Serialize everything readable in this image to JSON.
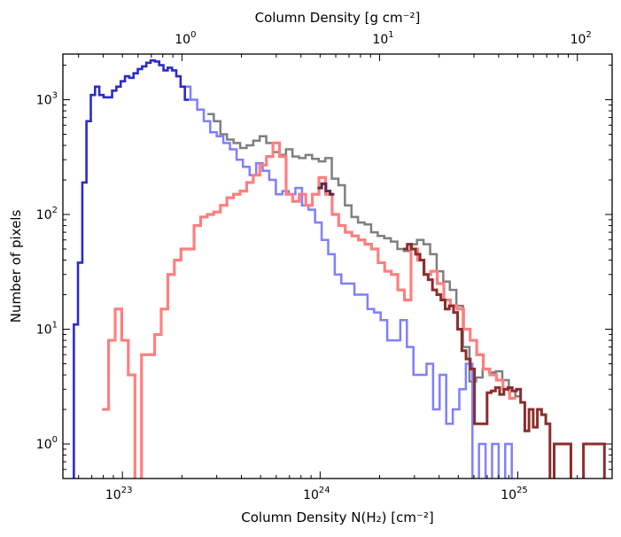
{
  "chart_data": {
    "type": "line",
    "xlabel": "Column Density N(H₂) [cm⁻²]",
    "ylabel": "Number of pixels",
    "top_xlabel": "Column Density [g cm⁻²]",
    "x_scale": "log",
    "y_scale": "log",
    "xlim": [
      5e+22,
      3e+25
    ],
    "ylim": [
      0.5,
      2500
    ],
    "x_ticks": [
      {
        "value": 1e+23,
        "base": "10",
        "exp": "23"
      },
      {
        "value": 1e+24,
        "base": "10",
        "exp": "24"
      },
      {
        "value": 1e+25,
        "base": "10",
        "exp": "25"
      }
    ],
    "y_ticks": [
      {
        "value": 1,
        "base": "10",
        "exp": "0"
      },
      {
        "value": 10,
        "base": "10",
        "exp": "1"
      },
      {
        "value": 100,
        "base": "10",
        "exp": "2"
      },
      {
        "value": 1000,
        "base": "10",
        "exp": "3"
      }
    ],
    "top_ticks": [
      {
        "value": 1,
        "base": "10",
        "exp": "0"
      },
      {
        "value": 10,
        "base": "10",
        "exp": "1"
      },
      {
        "value": 100,
        "base": "10",
        "exp": "2"
      }
    ],
    "top_to_bottom_factor": 2e+23,
    "grid": false,
    "series": [
      {
        "color": "#7f7f7f",
        "opacity": 1.0,
        "width": 2.5,
        "edges": [
          2.69e+23,
          2.9e+23,
          3.13e+23,
          3.38e+23,
          3.65e+23,
          3.94e+23,
          4.25e+23,
          4.59e+23,
          4.95e+23,
          5.34e+23,
          5.77e+23,
          6.22e+23,
          6.72e+23,
          7.25e+23,
          7.82e+23,
          8.44e+23,
          9.11e+23,
          9.84e+23,
          1.062e+24,
          1.146e+24,
          1.237e+24,
          1.335e+24,
          1.441e+24,
          1.555e+24,
          1.679e+24,
          1.812e+24,
          1.956e+24,
          2.11e+24,
          2.278e+24,
          2.459e+24,
          2.654e+24,
          2.865e+24,
          3.092e+24,
          3.337e+24,
          3.602e+24,
          3.888e+24,
          4.196e+24,
          4.53e+24,
          4.889e+24,
          5.277e+24,
          5.696e+24,
          6.148e+24,
          6.636e+24,
          7.163e+24,
          7.731e+24,
          8.345e+24,
          9.007e+24,
          9.722e+24,
          1.049e+25
        ],
        "values": [
          750,
          650,
          500,
          450,
          420,
          380,
          400,
          440,
          480,
          420,
          350,
          330,
          370,
          320,
          310,
          330,
          305,
          290,
          310,
          205,
          180,
          120,
          95,
          85,
          82,
          70,
          65,
          62,
          58,
          50,
          48,
          55,
          60,
          55,
          45,
          32,
          26,
          22,
          16,
          7,
          3.5,
          3.8,
          4.5,
          4.2,
          4.3,
          3.6,
          2.9,
          2.6
        ]
      },
      {
        "color": "#7f7fff",
        "opacity": 1.0,
        "width": 2.5,
        "edges": [
          2.05e+23,
          2.21e+23,
          2.39e+23,
          2.58e+23,
          2.78e+23,
          3e+23,
          3.24e+23,
          3.5e+23,
          3.78e+23,
          4.07e+23,
          4.4e+23,
          4.75e+23,
          5.12e+23,
          5.53e+23,
          5.97e+23,
          6.44e+23,
          6.95e+23,
          7.5e+23,
          8.1e+23,
          8.74e+23,
          9.43e+23,
          1.018e+24,
          1.099e+24,
          1.186e+24,
          1.28e+24,
          1.382e+24,
          1.491e+24,
          1.61e+24,
          1.737e+24,
          1.875e+24,
          2.024e+24,
          2.185e+24,
          2.358e+24,
          2.545e+24,
          2.747e+24,
          2.965e+24,
          3.2e+24,
          3.454e+24,
          3.728e+24,
          4.024e+24,
          4.343e+24,
          4.688e+24,
          5.06e+24,
          5.461e+24,
          5.894e+24,
          6.362e+24,
          6.867e+24,
          7.412e+24,
          8e+24,
          8.634e+24,
          9.319e+24,
          1.0059e+25
        ],
        "values": [
          1300,
          1000,
          820,
          650,
          520,
          480,
          420,
          370,
          300,
          260,
          220,
          280,
          240,
          200,
          150,
          160,
          150,
          170,
          120,
          110,
          85,
          60,
          45,
          30,
          25,
          25,
          20,
          20,
          15,
          14,
          12,
          8,
          8,
          12,
          7,
          4,
          4,
          5,
          2,
          4,
          1.5,
          2,
          3,
          5,
          0.4,
          1,
          0.4,
          1,
          0.4,
          1,
          0.4
        ]
      },
      {
        "color": "#ff7f7f",
        "opacity": 1.0,
        "width": 3.2,
        "edges": [
          7.88e+22,
          8.51e+22,
          9.19e+22,
          9.92e+22,
          1.071e+23,
          1.157e+23,
          1.249e+23,
          1.348e+23,
          1.455e+23,
          1.571e+23,
          1.696e+23,
          1.831e+23,
          1.977e+23,
          2.134e+23,
          2.304e+23,
          2.487e+23,
          2.685e+23,
          2.898e+23,
          3.129e+23,
          3.378e+23,
          3.647e+23,
          3.937e+23,
          4.25e+23,
          4.588e+23,
          4.953e+23,
          5.347e+23,
          5.773e+23,
          6.232e+23,
          6.728e+23,
          7.263e+23,
          7.841e+23,
          8.465e+23,
          9.139e+23,
          9.866e+23,
          1.0651e+24,
          1.1499e+24,
          1.2413e+24,
          1.3401e+24,
          1.4467e+24,
          1.5618e+24,
          1.6861e+24,
          1.8203e+24,
          1.9651e+24,
          2.1215e+24,
          2.2903e+24,
          2.4725e+24,
          2.6693e+24,
          2.8816e+24,
          3.1109e+24,
          3.3585e+24,
          3.6257e+24,
          3.9142e+24,
          4.2257e+24,
          4.5619e+24,
          4.9249e+24,
          5.3168e+24,
          5.7399e+24,
          6.1967e+24,
          6.6897e+24,
          7.222e+24,
          7.7967e+24,
          8.4171e+24,
          9.0868e+24,
          9.8099e+24
        ],
        "values": [
          2,
          8,
          15,
          8,
          4,
          0.4,
          6,
          6,
          9,
          15,
          30,
          40,
          50,
          50,
          80,
          95,
          100,
          105,
          120,
          140,
          150,
          160,
          190,
          220,
          270,
          320,
          420,
          320,
          150,
          130,
          150,
          120,
          150,
          210,
          150,
          100,
          80,
          70,
          65,
          60,
          55,
          50,
          38,
          32,
          30,
          22,
          18,
          50,
          40,
          30,
          32,
          25,
          18,
          16,
          15,
          10,
          8,
          6,
          4.5,
          4.0,
          3.6,
          3.0,
          2.5
        ]
      },
      {
        "color": "#2b2bc8",
        "opacity": 1.0,
        "width": 2.6,
        "edges": [
          5.4e+22,
          5.68e+22,
          5.96e+22,
          6.27e+22,
          6.58e+22,
          6.92e+22,
          7.27e+22,
          7.64e+22,
          8.03e+22,
          8.44e+22,
          8.87e+22,
          9.32e+22,
          9.8e+22,
          1.03e+23,
          1.083e+23,
          1.138e+23,
          1.196e+23,
          1.257e+23,
          1.321e+23,
          1.389e+23,
          1.46e+23,
          1.535e+23,
          1.613e+23,
          1.695e+23,
          1.782e+23,
          1.873e+23,
          1.969e+23,
          2.07e+23,
          2.175e+23
        ],
        "values": [
          0.4,
          11,
          38,
          190,
          650,
          1100,
          1300,
          1100,
          1050,
          1050,
          1200,
          1300,
          1450,
          1600,
          1550,
          1700,
          1850,
          1950,
          2100,
          2200,
          2150,
          2000,
          1800,
          1900,
          1800,
          1600,
          1300,
          1000
        ]
      },
      {
        "color": "#5a2a4a",
        "opacity": 1.0,
        "width": 3.0,
        "edges": [
          9.7e+23,
          1.019e+24,
          1.07e+24,
          1.124e+24,
          1.18e+24
        ],
        "values": [
          170,
          185,
          160,
          150
        ]
      },
      {
        "color": "#8b2d2d",
        "opacity": 1.0,
        "width": 3.0,
        "edges": [
          2.63e+24,
          2.76e+24,
          2.9e+24,
          3.04e+24,
          3.2e+24,
          3.35e+24,
          3.52e+24,
          3.7e+24,
          3.89e+24,
          4.08e+24,
          4.29e+24,
          4.5e+24,
          4.73e+24,
          4.96e+24,
          5.21e+24,
          5.47e+24,
          5.75e+24,
          6.04e+24,
          6.34e+24,
          6.66e+24,
          6.99e+24,
          7.34e+24,
          7.71e+24,
          8.09e+24,
          8.5e+24,
          8.92e+24,
          9.37e+24,
          9.84e+24,
          1.033e+25,
          1.085e+25,
          1.139e+25,
          1.196e+25,
          1.256e+25,
          1.319e+25,
          1.385e+25,
          1.454e+25,
          1.527e+25,
          1.603e+25,
          1.683e+25,
          1.767e+25,
          1.856e+25,
          1.948e+25,
          2.046e+25,
          2.148e+25,
          2.256e+25,
          2.368e+25,
          2.487e+25,
          2.611e+25,
          2.742e+25
        ],
        "values": [
          50,
          55,
          50,
          45,
          40,
          30,
          27,
          22,
          20,
          18,
          15,
          16,
          14,
          10,
          6.5,
          5.5,
          4.5,
          1.5,
          1.5,
          1.5,
          2.8,
          2.9,
          3.1,
          2.7,
          3.0,
          3.1,
          2.9,
          3.0,
          2.3,
          1.3,
          2.0,
          1.4,
          2.0,
          1.8,
          1.5,
          0.4,
          1,
          1,
          1,
          1,
          0.4,
          0.4,
          0.4,
          1,
          1,
          1,
          1,
          1,
          0.4
        ]
      }
    ]
  }
}
